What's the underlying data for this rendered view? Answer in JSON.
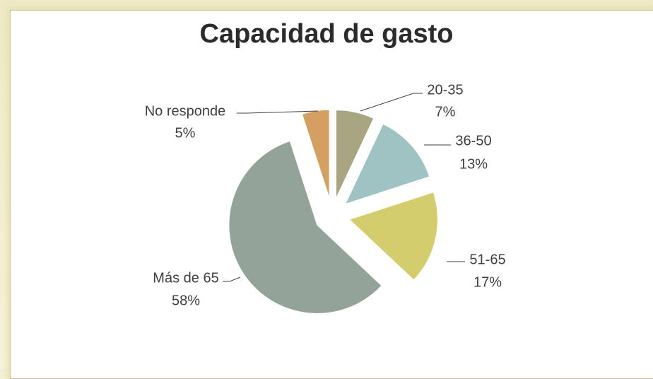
{
  "chart_data": {
    "type": "pie",
    "title": "Capacidad de gasto",
    "categories": [
      "20-35",
      "36-50",
      "51-65",
      "Más de 65",
      "No responde"
    ],
    "values": [
      7,
      13,
      17,
      58,
      5
    ],
    "value_labels": [
      "7%",
      "13%",
      "17%",
      "58%",
      "5%"
    ],
    "colors": [
      "#a9a482",
      "#9fc2c2",
      "#d4cd6e",
      "#93a39a",
      "#d4a060"
    ]
  }
}
